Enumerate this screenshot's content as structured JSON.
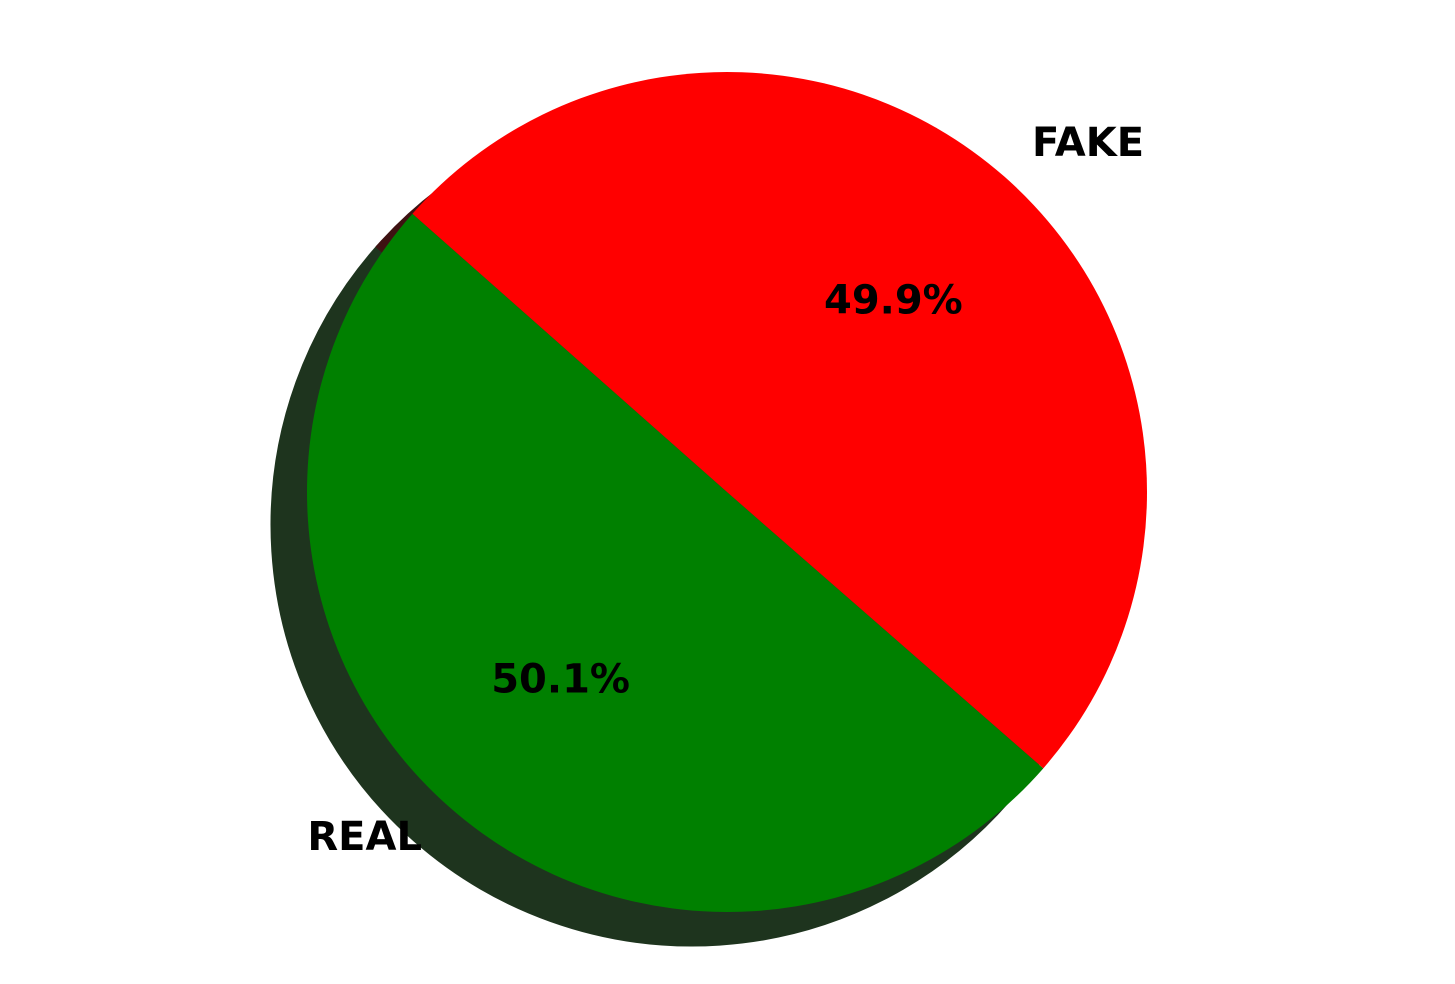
{
  "chart_data": {
    "type": "pie",
    "categories": [
      "REAL",
      "FAKE"
    ],
    "values": [
      50.1,
      49.9
    ],
    "percent_labels": [
      "50.1%",
      "49.9%"
    ],
    "colors": [
      "#008000",
      "#ff0000"
    ],
    "shadow": true,
    "title": "",
    "legend": false
  }
}
